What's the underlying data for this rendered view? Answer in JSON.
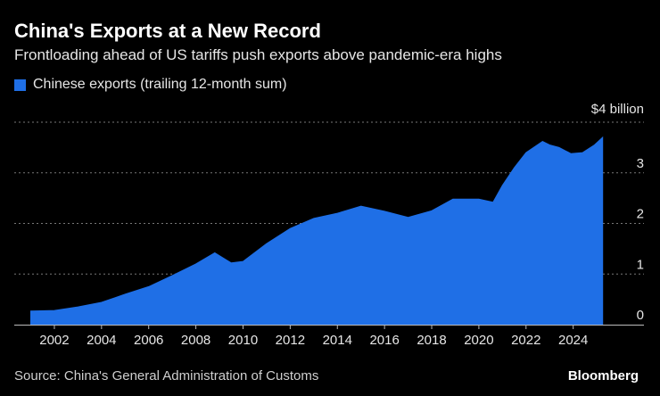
{
  "title": "China's Exports at a New Record",
  "subtitle": "Frontloading ahead of US tariffs push exports above pandemic-era highs",
  "legend": {
    "label": "Chinese exports (trailing 12-month sum)"
  },
  "source": "Source: China's General Administration of Customs",
  "brand": "Bloomberg",
  "colors": {
    "series": "#1f6fe6",
    "background": "#000000",
    "grid": "#777777",
    "axis": "#bbbbbb"
  },
  "chart_data": {
    "type": "area",
    "series": [
      {
        "name": "Chinese exports (trailing 12-month sum)",
        "x": [
          2001.0,
          2002.0,
          2003.0,
          2004.0,
          2005.0,
          2006.0,
          2007.0,
          2008.0,
          2008.8,
          2009.5,
          2010.0,
          2011.0,
          2012.0,
          2013.0,
          2014.0,
          2015.0,
          2016.0,
          2017.0,
          2018.0,
          2018.9,
          2019.6,
          2020.0,
          2020.6,
          2021.0,
          2021.5,
          2022.0,
          2022.7,
          2023.0,
          2023.4,
          2023.9,
          2024.4,
          2024.9,
          2025.25
        ],
        "y": [
          0.27,
          0.28,
          0.35,
          0.44,
          0.6,
          0.75,
          0.97,
          1.2,
          1.42,
          1.22,
          1.25,
          1.6,
          1.9,
          2.1,
          2.2,
          2.34,
          2.24,
          2.12,
          2.25,
          2.48,
          2.48,
          2.48,
          2.42,
          2.75,
          3.1,
          3.4,
          3.62,
          3.55,
          3.5,
          3.38,
          3.4,
          3.55,
          3.7
        ]
      }
    ],
    "x_ticks": [
      "2002",
      "2004",
      "2006",
      "2008",
      "2010",
      "2012",
      "2014",
      "2016",
      "2018",
      "2020",
      "2022",
      "2024"
    ],
    "y_ticks": [
      "0",
      "1",
      "2",
      "3",
      "$4 billion"
    ],
    "xlim": [
      2000.3,
      2027.0
    ],
    "ylim": [
      0,
      4
    ],
    "grid": true,
    "legend_position": "top-left"
  }
}
